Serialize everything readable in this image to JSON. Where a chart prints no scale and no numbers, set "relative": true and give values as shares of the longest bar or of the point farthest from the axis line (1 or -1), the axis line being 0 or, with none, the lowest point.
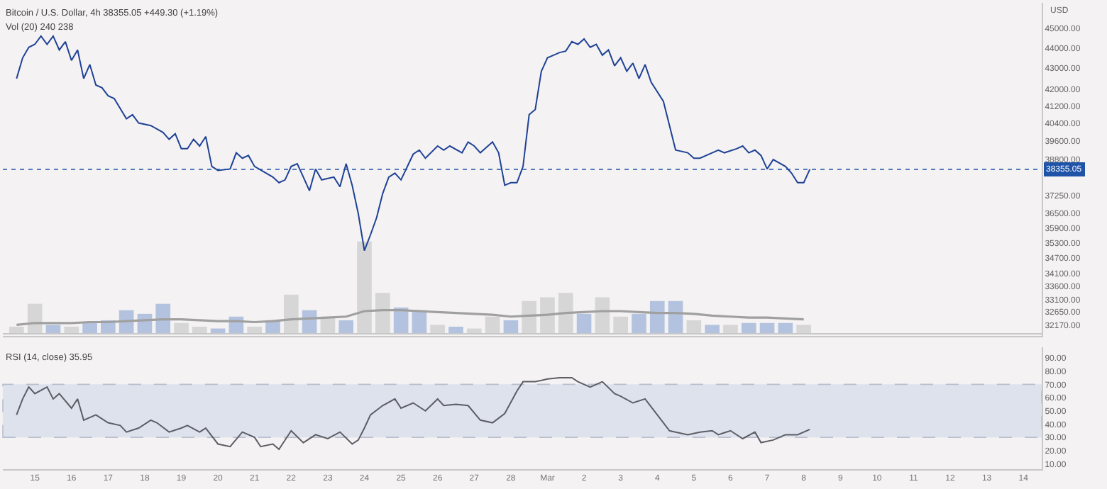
{
  "chart_data": [
    {
      "type": "line",
      "title": "Bitcoin / U.S. Dollar, 4h 38355.05 +449.30 (+1.19%)",
      "ylabel": "USD",
      "log": true,
      "tick_labels": "y",
      "xlim": [
        "--02-14T03:00",
        "--03-14T12:00"
      ],
      "ylim": [
        31770,
        46300
      ],
      "yticks": [
        {
          "value": 45000,
          "label": "45000.00"
        },
        {
          "value": 44000,
          "label": "44000.00"
        },
        {
          "value": 43000,
          "label": "43000.00"
        },
        {
          "value": 42000,
          "label": "42000.00"
        },
        {
          "value": 41200,
          "label": "41200.00"
        },
        {
          "value": 40400,
          "label": "40400.00"
        },
        {
          "value": 39600,
          "label": "39600.00"
        },
        {
          "value": 38800,
          "label": "38800.00"
        },
        {
          "value": 37250,
          "label": "37250.00"
        },
        {
          "value": 36500,
          "label": "36500.00"
        },
        {
          "value": 35900,
          "label": "35900.00"
        },
        {
          "value": 35300,
          "label": "35300.00"
        },
        {
          "value": 34700,
          "label": "34700.00"
        },
        {
          "value": 34100,
          "label": "34100.00"
        },
        {
          "value": 33600,
          "label": "33600.00"
        },
        {
          "value": 33100,
          "label": "33100.00"
        },
        {
          "value": 32650,
          "label": "32650.00"
        },
        {
          "value": 32170,
          "label": "32170.00"
        }
      ],
      "ref_lines": [
        {
          "axis": "y",
          "value": 38355.05,
          "label": "38355.05",
          "color": "#1e53a8",
          "line_style": "dotted"
        }
      ],
      "x": [
        "--02-14T12:00",
        "--02-14T16:00",
        "--02-14T20:00",
        "--02-15T00:00",
        "--02-15T04:00",
        "--02-15T08:00",
        "--02-15T12:00",
        "--02-15T16:00",
        "--02-15T20:00",
        "--02-16T00:00",
        "--02-16T04:00",
        "--02-16T08:00",
        "--02-16T12:00",
        "--02-16T16:00",
        "--02-16T20:00",
        "--02-17T00:00",
        "--02-17T04:00",
        "--02-17T12:00",
        "--02-17T16:00",
        "--02-17T20:00",
        "--02-18T04:00",
        "--02-18T12:00",
        "--02-18T16:00",
        "--02-18T20:00",
        "--02-19T00:00",
        "--02-19T04:00",
        "--02-19T08:00",
        "--02-19T12:00",
        "--02-19T16:00",
        "--02-19T20:00",
        "--02-20T00:00",
        "--02-20T08:00",
        "--02-20T12:00",
        "--02-20T16:00",
        "--02-20T20:00",
        "--02-21T00:00",
        "--02-21T12:00",
        "--02-21T16:00",
        "--02-21T20:00",
        "--02-22T00:00",
        "--02-22T04:00",
        "--02-22T08:00",
        "--02-22T12:00",
        "--02-22T16:00",
        "--02-22T20:00",
        "--02-23T04:00",
        "--02-23T08:00",
        "--02-23T12:00",
        "--02-23T16:00",
        "--02-23T20:00",
        "--02-24T00:00",
        "--02-24T04:00",
        "--02-24T08:00",
        "--02-24T12:00",
        "--02-24T16:00",
        "--02-24T20:00",
        "--02-25T00:00",
        "--02-25T08:00",
        "--02-25T12:00",
        "--02-25T16:00",
        "--02-26T00:00",
        "--02-26T04:00",
        "--02-26T08:00",
        "--02-26T16:00",
        "--02-26T20:00",
        "--02-27T00:00",
        "--02-27T04:00",
        "--02-27T12:00",
        "--02-27T16:00",
        "--02-27T20:00",
        "--02-28T00:00",
        "--02-28T04:00",
        "--02-28T08:00",
        "--02-28T12:00",
        "--02-28T16:00",
        "--02-28T20:00",
        "--03-01T00:00",
        "--03-01T04:00",
        "--03-01T08:00",
        "--03-01T12:00",
        "--03-01T16:00",
        "--03-01T20:00",
        "--03-02T00:00",
        "--03-02T04:00",
        "--03-02T08:00",
        "--03-02T12:00",
        "--03-02T16:00",
        "--03-02T20:00",
        "--03-03T00:00",
        "--03-03T04:00",
        "--03-03T08:00",
        "--03-03T12:00",
        "--03-03T16:00",
        "--03-03T20:00",
        "--03-04T04:00",
        "--03-04T08:00",
        "--03-04T12:00",
        "--03-04T20:00",
        "--03-05T00:00",
        "--03-05T04:00",
        "--03-05T12:00",
        "--03-05T16:00",
        "--03-05T20:00",
        "--03-06T04:00",
        "--03-06T08:00",
        "--03-06T12:00",
        "--03-06T16:00",
        "--03-06T20:00",
        "--03-07T00:00",
        "--03-07T04:00",
        "--03-07T12:00",
        "--03-07T16:00",
        "--03-07T20:00",
        "--03-08T00:00",
        "--03-08T04:00"
      ],
      "series": [
        {
          "color": "#1f4296",
          "values": [
            42500,
            43510,
            44030,
            44180,
            44590,
            44180,
            44590,
            43900,
            44310,
            43380,
            43900,
            42500,
            43180,
            42190,
            42060,
            41680,
            41550,
            40610,
            40800,
            40420,
            40300,
            39990,
            39680,
            39930,
            39260,
            39260,
            39680,
            39380,
            39800,
            38480,
            38310,
            38370,
            39080,
            38840,
            38960,
            38480,
            38020,
            37780,
            37900,
            38480,
            38600,
            38020,
            37440,
            38370,
            37900,
            38020,
            37610,
            38600,
            37670,
            36480,
            34990,
            35620,
            36310,
            37320,
            38020,
            38190,
            37900,
            39020,
            39200,
            38840,
            39380,
            39200,
            39380,
            39080,
            39560,
            39380,
            39080,
            39560,
            39080,
            37670,
            37780,
            37780,
            38480,
            40800,
            41040,
            42850,
            43510,
            43640,
            43770,
            43840,
            44310,
            44180,
            44450,
            44030,
            44180,
            43640,
            43900,
            43120,
            43510,
            42850,
            43250,
            42500,
            43180,
            42320,
            41420,
            40300,
            39200,
            39080,
            38840,
            38840,
            39080,
            39200,
            39080,
            39260,
            39380,
            39080,
            39200,
            38960,
            38370,
            38780,
            38480,
            38190,
            37780,
            37780,
            38355.05
          ]
        }
      ]
    },
    {
      "type": "bar",
      "title": "Vol (20) 240 238",
      "relative": true,
      "tick_labels": false,
      "xlim": [
        "--02-14T03:00",
        "--03-14T12:00"
      ],
      "x": [
        "--02-14T12:00",
        "--02-15T00:00",
        "--02-15T12:00",
        "--02-16T00:00",
        "--02-16T12:00",
        "--02-17T00:00",
        "--02-17T12:00",
        "--02-18T00:00",
        "--02-18T12:00",
        "--02-19T00:00",
        "--02-19T12:00",
        "--02-20T00:00",
        "--02-20T12:00",
        "--02-21T00:00",
        "--02-21T12:00",
        "--02-22T00:00",
        "--02-22T12:00",
        "--02-23T00:00",
        "--02-23T12:00",
        "--02-24T00:00",
        "--02-24T12:00",
        "--02-25T00:00",
        "--02-25T12:00",
        "--02-26T00:00",
        "--02-26T12:00",
        "--02-27T00:00",
        "--02-27T12:00",
        "--02-28T00:00",
        "--02-28T12:00",
        "--03-01T00:00",
        "--03-01T12:00",
        "--03-02T00:00",
        "--03-02T12:00",
        "--03-03T00:00",
        "--03-03T12:00",
        "--03-04T00:00",
        "--03-04T12:00",
        "--03-05T00:00",
        "--03-05T12:00",
        "--03-06T00:00",
        "--03-06T12:00",
        "--03-07T00:00",
        "--03-07T12:00",
        "--03-08T00:00"
      ],
      "series": [
        {
          "type": "bar",
          "colors": [
            "#d6d6d6",
            "#d6d6d6",
            "#b3c3df",
            "#d6d6d6",
            "#b3c3df",
            "#b3c3df",
            "#b3c3df",
            "#b3c3df",
            "#b3c3df",
            "#d6d6d6",
            "#d6d6d6",
            "#b3c3df",
            "#b3c3df",
            "#d6d6d6",
            "#b3c3df",
            "#d6d6d6",
            "#b3c3df",
            "#d6d6d6",
            "#b3c3df",
            "#d6d6d6",
            "#d6d6d6",
            "#b3c3df",
            "#b3c3df",
            "#d6d6d6",
            "#b3c3df",
            "#d6d6d6",
            "#d6d6d6",
            "#b3c3df",
            "#d6d6d6",
            "#d6d6d6",
            "#d6d6d6",
            "#b3c3df",
            "#d6d6d6",
            "#d6d6d6",
            "#b3c3df",
            "#b3c3df",
            "#b3c3df",
            "#d6d6d6",
            "#b3c3df",
            "#d6d6d6",
            "#b3c3df",
            "#b3c3df",
            "#b3c3df",
            "#d6d6d6"
          ],
          "values": [
            0.07,
            0.32,
            0.09,
            0.07,
            0.11,
            0.14,
            0.25,
            0.21,
            0.32,
            0.11,
            0.07,
            0.05,
            0.18,
            0.07,
            0.14,
            0.42,
            0.25,
            0.18,
            0.14,
            1.0,
            0.44,
            0.28,
            0.25,
            0.09,
            0.07,
            0.05,
            0.18,
            0.14,
            0.35,
            0.39,
            0.44,
            0.21,
            0.39,
            0.18,
            0.21,
            0.35,
            0.35,
            0.14,
            0.09,
            0.09,
            0.11,
            0.11,
            0.11,
            0.09
          ]
        },
        {
          "type": "line",
          "color": "#a0a0a0",
          "values": [
            0.09,
            0.11,
            0.11,
            0.11,
            0.12,
            0.12,
            0.13,
            0.14,
            0.15,
            0.15,
            0.14,
            0.13,
            0.13,
            0.12,
            0.13,
            0.15,
            0.16,
            0.17,
            0.18,
            0.24,
            0.25,
            0.25,
            0.24,
            0.23,
            0.22,
            0.21,
            0.2,
            0.18,
            0.19,
            0.2,
            0.22,
            0.23,
            0.24,
            0.24,
            0.23,
            0.22,
            0.22,
            0.21,
            0.19,
            0.18,
            0.17,
            0.17,
            0.16,
            0.15
          ]
        }
      ]
    },
    {
      "type": "line",
      "title": "RSI (14, close) 35.95",
      "xlim": [
        "--02-14T03:00",
        "--03-14T12:00"
      ],
      "xticks": [
        {
          "value": "--02-15",
          "label": "15"
        },
        {
          "value": "--02-16",
          "label": "16"
        },
        {
          "value": "--02-17",
          "label": "17"
        },
        {
          "value": "--02-18",
          "label": "18"
        },
        {
          "value": "--02-19",
          "label": "19"
        },
        {
          "value": "--02-20",
          "label": "20"
        },
        {
          "value": "--02-21",
          "label": "21"
        },
        {
          "value": "--02-22",
          "label": "22"
        },
        {
          "value": "--02-23",
          "label": "23"
        },
        {
          "value": "--02-24",
          "label": "24"
        },
        {
          "value": "--02-25",
          "label": "25"
        },
        {
          "value": "--02-26",
          "label": "26"
        },
        {
          "value": "--02-27",
          "label": "27"
        },
        {
          "value": "--02-28",
          "label": "28"
        },
        {
          "value": "--03-01",
          "label": "Mar"
        },
        {
          "value": "--03-02",
          "label": "2"
        },
        {
          "value": "--03-03",
          "label": "3"
        },
        {
          "value": "--03-04",
          "label": "4"
        },
        {
          "value": "--03-05",
          "label": "5"
        },
        {
          "value": "--03-06",
          "label": "6"
        },
        {
          "value": "--03-07",
          "label": "7"
        },
        {
          "value": "--03-08",
          "label": "8"
        },
        {
          "value": "--03-09",
          "label": "9"
        },
        {
          "value": "--03-10",
          "label": "10"
        },
        {
          "value": "--03-11",
          "label": "11"
        },
        {
          "value": "--03-12",
          "label": "12"
        },
        {
          "value": "--03-13",
          "label": "13"
        },
        {
          "value": "--03-14",
          "label": "14"
        }
      ],
      "ylim": [
        6,
        98
      ],
      "yticks": [
        {
          "value": 90,
          "label": "90.00"
        },
        {
          "value": 80,
          "label": "80.00"
        },
        {
          "value": 70,
          "label": "70.00"
        },
        {
          "value": 60,
          "label": "60.00"
        },
        {
          "value": 50,
          "label": "50.00"
        },
        {
          "value": 40,
          "label": "40.00"
        },
        {
          "value": 30,
          "label": "30.00"
        },
        {
          "value": 20,
          "label": "20.00"
        },
        {
          "value": 10,
          "label": "10.00"
        }
      ],
      "bands": [
        {
          "axis": "y",
          "from": 30,
          "to": 70,
          "color": "#dde2ec"
        }
      ],
      "x": [
        "--02-14T12:00",
        "--02-14T16:00",
        "--02-14T20:00",
        "--02-15T00:00",
        "--02-15T08:00",
        "--02-15T12:00",
        "--02-15T16:00",
        "--02-16T00:00",
        "--02-16T04:00",
        "--02-16T08:00",
        "--02-16T16:00",
        "--02-17T00:00",
        "--02-17T08:00",
        "--02-17T12:00",
        "--02-17T20:00",
        "--02-18T04:00",
        "--02-18T08:00",
        "--02-18T16:00",
        "--02-19T00:00",
        "--02-19T04:00",
        "--02-19T12:00",
        "--02-19T16:00",
        "--02-20T00:00",
        "--02-20T08:00",
        "--02-20T16:00",
        "--02-21T00:00",
        "--02-21T04:00",
        "--02-21T12:00",
        "--02-21T16:00",
        "--02-22T00:00",
        "--02-22T08:00",
        "--02-22T16:00",
        "--02-23T00:00",
        "--02-23T08:00",
        "--02-23T16:00",
        "--02-23T20:00",
        "--02-24T00:00",
        "--02-24T04:00",
        "--02-24T12:00",
        "--02-24T20:00",
        "--02-25T00:00",
        "--02-25T08:00",
        "--02-25T16:00",
        "--02-26T00:00",
        "--02-26T04:00",
        "--02-26T12:00",
        "--02-26T20:00",
        "--02-27T04:00",
        "--02-27T12:00",
        "--02-27T20:00",
        "--02-28T04:00",
        "--02-28T08:00",
        "--02-28T16:00",
        "--03-01T00:00",
        "--03-01T08:00",
        "--03-01T16:00",
        "--03-01T20:00",
        "--03-02T04:00",
        "--03-02T12:00",
        "--03-02T20:00",
        "--03-03T00:00",
        "--03-03T08:00",
        "--03-03T16:00",
        "--03-04T00:00",
        "--03-04T08:00",
        "--03-04T12:00",
        "--03-04T20:00",
        "--03-05T04:00",
        "--03-05T12:00",
        "--03-05T16:00",
        "--03-06T00:00",
        "--03-06T08:00",
        "--03-06T16:00",
        "--03-06T20:00",
        "--03-07T04:00",
        "--03-07T12:00",
        "--03-07T20:00",
        "--03-08T04:00"
      ],
      "series": [
        {
          "color": "#5d5d66",
          "values": [
            47,
            59,
            68,
            63,
            68,
            59,
            63,
            52,
            59,
            43,
            47,
            41,
            39,
            34,
            37,
            43,
            41,
            34,
            37,
            39,
            34,
            37,
            25,
            23,
            34,
            30,
            23,
            25,
            21,
            35,
            26,
            32,
            29,
            34,
            25,
            28,
            37,
            47,
            54,
            59,
            52,
            56,
            50,
            59,
            54,
            55,
            54,
            43,
            41,
            48,
            65,
            72,
            72,
            74,
            75,
            75,
            72,
            68,
            72,
            63,
            61,
            56,
            59,
            47,
            35,
            34,
            32,
            34,
            35,
            32,
            35,
            29,
            34,
            26,
            28,
            32,
            32,
            36
          ]
        }
      ]
    }
  ]
}
